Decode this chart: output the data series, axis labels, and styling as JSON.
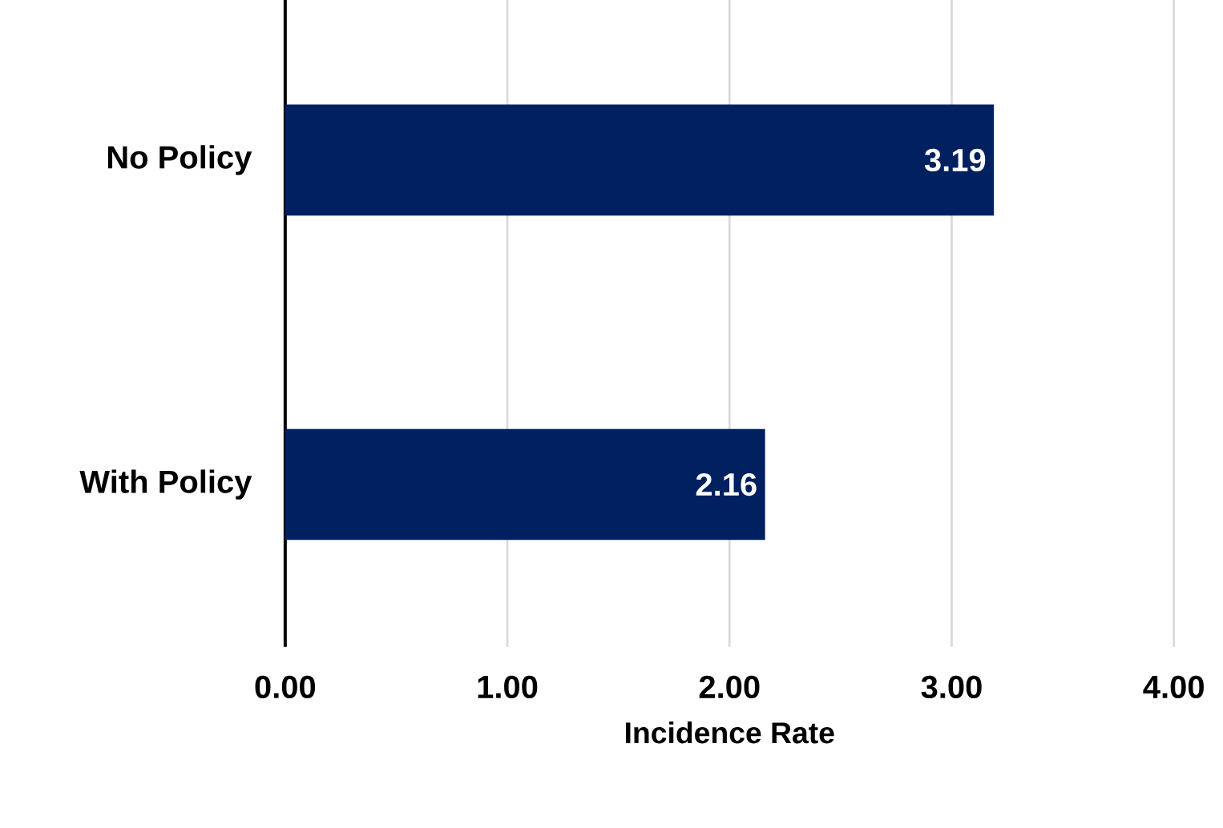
{
  "chart_data": {
    "type": "bar",
    "orientation": "horizontal",
    "xlabel": "Incidence Rate",
    "categories": [
      "No Policy",
      "With Policy"
    ],
    "values": [
      3.19,
      2.16
    ],
    "color": "#002060",
    "data_labels": true,
    "xlim": [
      0,
      4
    ],
    "xticks": [
      {
        "value": 0,
        "label": "0.00"
      },
      {
        "value": 1,
        "label": "1.00"
      },
      {
        "value": 2,
        "label": "2.00"
      },
      {
        "value": 3,
        "label": "3.00"
      },
      {
        "value": 4,
        "label": "4.00"
      }
    ],
    "grid": "x"
  }
}
